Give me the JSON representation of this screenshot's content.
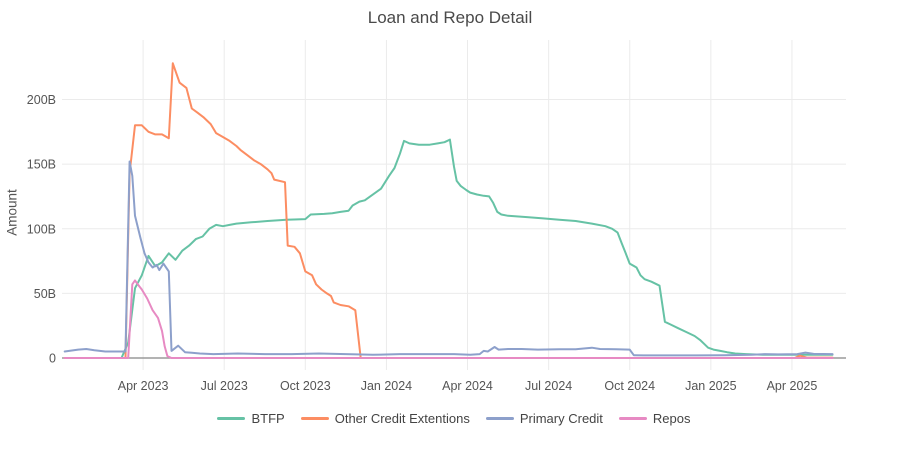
{
  "chart": {
    "title": "Loan and Repo Detail",
    "y_axis_title": "Amount"
  },
  "chart_data": {
    "type": "line",
    "title": "Loan and Repo Detail",
    "xlabel": "",
    "ylabel": "Amount",
    "grid": true,
    "legend_position": "bottom-center",
    "x_unit": "months since 2023-01-01 (values in billions of dollars)",
    "x_range_months": [
      0,
      29
    ],
    "y_range": [
      -10,
      246
    ],
    "x_ticks": [
      {
        "m": 3,
        "label": "Apr 2023"
      },
      {
        "m": 6,
        "label": "Jul 2023"
      },
      {
        "m": 9,
        "label": "Oct 2023"
      },
      {
        "m": 12,
        "label": "Jan 2024"
      },
      {
        "m": 15,
        "label": "Apr 2024"
      },
      {
        "m": 18,
        "label": "Jul 2024"
      },
      {
        "m": 21,
        "label": "Oct 2024"
      },
      {
        "m": 24,
        "label": "Jan 2025"
      },
      {
        "m": 27,
        "label": "Apr 2025"
      }
    ],
    "y_ticks": [
      {
        "v": 0,
        "label": "0"
      },
      {
        "v": 50,
        "label": "50B"
      },
      {
        "v": 100,
        "label": "100B"
      },
      {
        "v": 150,
        "label": "150B"
      },
      {
        "v": 200,
        "label": "200B"
      }
    ],
    "series": [
      {
        "name": "BTFP",
        "color": "#66c2a5",
        "points": [
          [
            0.1,
            0
          ],
          [
            2.2,
            0
          ],
          [
            2.45,
            12
          ],
          [
            2.7,
            54
          ],
          [
            2.95,
            64
          ],
          [
            3.2,
            79
          ],
          [
            3.45,
            71
          ],
          [
            3.7,
            74
          ],
          [
            3.95,
            81
          ],
          [
            4.2,
            76
          ],
          [
            4.45,
            83
          ],
          [
            4.7,
            87
          ],
          [
            4.95,
            92
          ],
          [
            5.2,
            94
          ],
          [
            5.45,
            100
          ],
          [
            5.7,
            103
          ],
          [
            5.95,
            102
          ],
          [
            6.2,
            103
          ],
          [
            6.45,
            104
          ],
          [
            7.0,
            105
          ],
          [
            7.6,
            106
          ],
          [
            8.3,
            107
          ],
          [
            9.0,
            107.5
          ],
          [
            9.2,
            111
          ],
          [
            9.7,
            111.5
          ],
          [
            10.0,
            112
          ],
          [
            10.3,
            113
          ],
          [
            10.6,
            114
          ],
          [
            10.75,
            118
          ],
          [
            11.0,
            121
          ],
          [
            11.2,
            122
          ],
          [
            11.4,
            125
          ],
          [
            11.6,
            128
          ],
          [
            11.8,
            131
          ],
          [
            11.95,
            136
          ],
          [
            12.1,
            141
          ],
          [
            12.3,
            147
          ],
          [
            12.5,
            158
          ],
          [
            12.65,
            168
          ],
          [
            12.85,
            166
          ],
          [
            13.2,
            165
          ],
          [
            13.6,
            165
          ],
          [
            13.9,
            166
          ],
          [
            14.15,
            167
          ],
          [
            14.35,
            169
          ],
          [
            14.5,
            148
          ],
          [
            14.6,
            137
          ],
          [
            14.75,
            133
          ],
          [
            14.95,
            130
          ],
          [
            15.1,
            128
          ],
          [
            15.35,
            126.5
          ],
          [
            15.6,
            125.5
          ],
          [
            15.8,
            125
          ],
          [
            15.95,
            120
          ],
          [
            16.1,
            113
          ],
          [
            16.25,
            111
          ],
          [
            16.5,
            110
          ],
          [
            17.2,
            109
          ],
          [
            17.8,
            108
          ],
          [
            18.4,
            107
          ],
          [
            19.0,
            106
          ],
          [
            19.6,
            104
          ],
          [
            20.1,
            102
          ],
          [
            20.35,
            100
          ],
          [
            20.55,
            97
          ],
          [
            20.7,
            89
          ],
          [
            20.85,
            81
          ],
          [
            21.0,
            73
          ],
          [
            21.25,
            70
          ],
          [
            21.4,
            64
          ],
          [
            21.55,
            61
          ],
          [
            21.8,
            59
          ],
          [
            22.0,
            57
          ],
          [
            22.1,
            56
          ],
          [
            22.3,
            28
          ],
          [
            22.5,
            26
          ],
          [
            22.8,
            23
          ],
          [
            23.1,
            20
          ],
          [
            23.4,
            17
          ],
          [
            23.6,
            14
          ],
          [
            23.75,
            11
          ],
          [
            23.9,
            8
          ],
          [
            24.1,
            6.5
          ],
          [
            24.35,
            5.5
          ],
          [
            24.6,
            4.5
          ],
          [
            24.9,
            3.5
          ],
          [
            25.3,
            3
          ],
          [
            26.0,
            2.5
          ],
          [
            27.0,
            2.5
          ],
          [
            28.0,
            2.5
          ],
          [
            28.5,
            2.5
          ]
        ]
      },
      {
        "name": "Other Credit Extentions",
        "color": "#fc8d62",
        "points": [
          [
            0.1,
            0
          ],
          [
            2.35,
            0
          ],
          [
            2.5,
            143
          ],
          [
            2.7,
            180
          ],
          [
            2.95,
            180
          ],
          [
            3.2,
            175
          ],
          [
            3.45,
            173
          ],
          [
            3.7,
            173
          ],
          [
            3.95,
            170
          ],
          [
            4.1,
            228
          ],
          [
            4.35,
            213
          ],
          [
            4.6,
            209
          ],
          [
            4.8,
            193
          ],
          [
            5.0,
            190
          ],
          [
            5.25,
            186
          ],
          [
            5.5,
            181
          ],
          [
            5.7,
            174
          ],
          [
            5.95,
            171
          ],
          [
            6.2,
            168
          ],
          [
            6.45,
            164
          ],
          [
            6.6,
            161
          ],
          [
            6.85,
            157
          ],
          [
            7.1,
            153
          ],
          [
            7.35,
            150
          ],
          [
            7.6,
            146
          ],
          [
            7.75,
            143
          ],
          [
            7.85,
            138
          ],
          [
            8.25,
            136
          ],
          [
            8.35,
            87
          ],
          [
            8.6,
            86
          ],
          [
            8.8,
            81
          ],
          [
            9.0,
            67
          ],
          [
            9.25,
            64
          ],
          [
            9.4,
            57
          ],
          [
            9.6,
            53
          ],
          [
            9.8,
            50
          ],
          [
            9.95,
            48
          ],
          [
            10.05,
            43
          ],
          [
            10.3,
            41
          ],
          [
            10.6,
            40
          ],
          [
            10.85,
            37
          ],
          [
            11.05,
            0
          ],
          [
            27.1,
            0
          ],
          [
            27.3,
            1.8
          ],
          [
            27.55,
            0.3
          ],
          [
            28.5,
            0.3
          ]
        ]
      },
      {
        "name": "Primary Credit",
        "color": "#8da0cb",
        "points": [
          [
            0.1,
            5
          ],
          [
            0.6,
            6.5
          ],
          [
            0.9,
            7
          ],
          [
            1.2,
            6
          ],
          [
            1.6,
            5
          ],
          [
            2.0,
            5
          ],
          [
            2.35,
            5
          ],
          [
            2.5,
            152
          ],
          [
            2.6,
            141
          ],
          [
            2.7,
            110
          ],
          [
            2.9,
            93
          ],
          [
            3.05,
            81
          ],
          [
            3.2,
            74
          ],
          [
            3.35,
            70
          ],
          [
            3.5,
            72
          ],
          [
            3.6,
            68
          ],
          [
            3.75,
            73
          ],
          [
            3.85,
            70
          ],
          [
            3.95,
            67
          ],
          [
            4.05,
            5.5
          ],
          [
            4.3,
            9.5
          ],
          [
            4.55,
            4.5
          ],
          [
            4.8,
            4
          ],
          [
            5.1,
            3.5
          ],
          [
            5.6,
            3
          ],
          [
            6.5,
            3.5
          ],
          [
            7.5,
            3
          ],
          [
            8.5,
            3
          ],
          [
            9.5,
            3.5
          ],
          [
            10.5,
            3
          ],
          [
            11.5,
            2.5
          ],
          [
            12.5,
            3
          ],
          [
            13.5,
            3
          ],
          [
            14.5,
            3
          ],
          [
            15.1,
            2.5
          ],
          [
            15.45,
            3
          ],
          [
            15.6,
            5.5
          ],
          [
            15.75,
            5
          ],
          [
            16.0,
            8.5
          ],
          [
            16.15,
            6.5
          ],
          [
            16.5,
            7
          ],
          [
            17.0,
            7
          ],
          [
            17.6,
            6.5
          ],
          [
            18.4,
            6.8
          ],
          [
            19.0,
            6.8
          ],
          [
            19.6,
            8
          ],
          [
            19.9,
            7
          ],
          [
            20.5,
            6.8
          ],
          [
            21.0,
            6.5
          ],
          [
            21.15,
            2.2
          ],
          [
            21.5,
            2
          ],
          [
            22.5,
            2
          ],
          [
            23.5,
            2
          ],
          [
            24.5,
            2.2
          ],
          [
            25.5,
            2.5
          ],
          [
            26.0,
            3
          ],
          [
            26.5,
            2.8
          ],
          [
            27.2,
            3
          ],
          [
            27.5,
            4.2
          ],
          [
            27.8,
            3.2
          ],
          [
            28.5,
            3
          ]
        ]
      },
      {
        "name": "Repos",
        "color": "#e78ac3",
        "points": [
          [
            0.1,
            0
          ],
          [
            2.45,
            0
          ],
          [
            2.6,
            57
          ],
          [
            2.7,
            60
          ],
          [
            2.8,
            57
          ],
          [
            2.95,
            53
          ],
          [
            3.15,
            46
          ],
          [
            3.35,
            37
          ],
          [
            3.55,
            31
          ],
          [
            3.7,
            21
          ],
          [
            3.8,
            9
          ],
          [
            3.9,
            1.5
          ],
          [
            4.05,
            0
          ],
          [
            28.5,
            0
          ]
        ]
      }
    ],
    "style": {
      "grid_color": "#ebebeb",
      "zeroline_color": "#9a9a9a",
      "tick_label_color": "#555555",
      "title_color": "#4a4a4a",
      "background": "#ffffff"
    }
  }
}
